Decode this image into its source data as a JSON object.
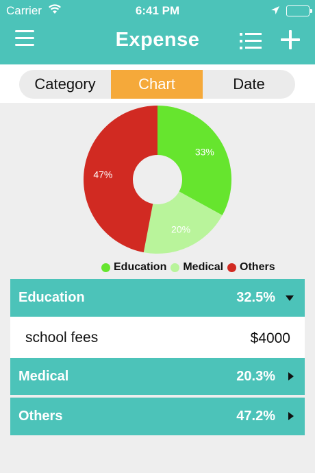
{
  "status_bar": {
    "carrier": "Carrier",
    "time": "6:41 PM"
  },
  "nav": {
    "title": "Expense",
    "menu_icon": "hamburger-icon",
    "list_icon": "list-icon",
    "add_icon": "plus-icon"
  },
  "segments": [
    {
      "label": "Category",
      "selected": false
    },
    {
      "label": "Chart",
      "selected": true
    },
    {
      "label": "Date",
      "selected": false
    }
  ],
  "colors": {
    "accent": "#4cc3b9",
    "selected_segment": "#f5a93a",
    "education": "#66e52e",
    "medical": "#b9f49b",
    "others": "#d12a22"
  },
  "chart_data": {
    "type": "pie",
    "donut": true,
    "categories": [
      "Education",
      "Medical",
      "Others"
    ],
    "values": [
      33,
      20,
      47
    ],
    "labels": [
      "33%",
      "20%",
      "47%"
    ],
    "legend": "bottom"
  },
  "categories": [
    {
      "name": "Education",
      "percent": "32.5%",
      "expanded": true,
      "items": [
        {
          "name": "school fees",
          "amount": "$4000"
        }
      ]
    },
    {
      "name": "Medical",
      "percent": "20.3%",
      "expanded": false,
      "items": []
    },
    {
      "name": "Others",
      "percent": "47.2%",
      "expanded": false,
      "items": []
    }
  ]
}
